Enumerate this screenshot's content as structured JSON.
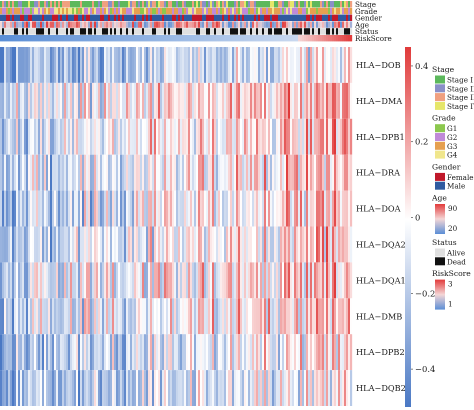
{
  "chart_data": {
    "type": "heatmap",
    "title": "",
    "annotation_tracks": [
      "Stage",
      "Grade",
      "Gender",
      "Age",
      "Status",
      "RiskScore"
    ],
    "rows": [
      "HLA−DOB",
      "HLA−DMA",
      "HLA−DPB1",
      "HLA−DRA",
      "HLA−DOA",
      "HLA−DQA2",
      "HLA−DQA1",
      "HLA−DMB",
      "HLA−DPB2",
      "HLA−DQB2"
    ],
    "color_scale": {
      "ticks": [
        "0.4",
        "0.2",
        "0",
        "−0.2",
        "−0.4"
      ],
      "tick_values": [
        0.4,
        0.2,
        0,
        -0.2,
        -0.4
      ],
      "range": [
        -0.5,
        0.45
      ],
      "low_color": "#4a78c4",
      "mid_color": "#ffffff",
      "high_color": "#e03a3a"
    },
    "legends": [
      {
        "title": "Stage",
        "type": "categorical",
        "items": [
          {
            "label": "Stage I",
            "color": "#5cb85c"
          },
          {
            "label": "Stage II",
            "color": "#8a8fc8"
          },
          {
            "label": "Stage III",
            "color": "#f0a080"
          },
          {
            "label": "Stage IV",
            "color": "#e6e66a"
          }
        ]
      },
      {
        "title": "Grade",
        "type": "categorical",
        "items": [
          {
            "label": "G1",
            "color": "#8cc84e"
          },
          {
            "label": "G2",
            "color": "#c08ad8"
          },
          {
            "label": "G3",
            "color": "#e6a050"
          },
          {
            "label": "G4",
            "color": "#f0e68c"
          }
        ]
      },
      {
        "title": "Gender",
        "type": "categorical",
        "items": [
          {
            "label": "Female",
            "color": "#c0182a"
          },
          {
            "label": "Male",
            "color": "#2f5aa0"
          }
        ]
      },
      {
        "title": "Age",
        "type": "continuous",
        "items": [
          {
            "label": "90",
            "color": "#e23b3b"
          },
          {
            "label": "20",
            "color": "#5a8ed6"
          }
        ]
      },
      {
        "title": "Status",
        "type": "categorical",
        "items": [
          {
            "label": "Alive",
            "color": "#e0e0e0"
          },
          {
            "label": "Dead",
            "color": "#111111"
          }
        ]
      },
      {
        "title": "RiskScore",
        "type": "continuous",
        "items": [
          {
            "label": "3",
            "color": "#e23b3b"
          },
          {
            "label": "1",
            "color": "#5a8ed6"
          }
        ]
      }
    ]
  }
}
